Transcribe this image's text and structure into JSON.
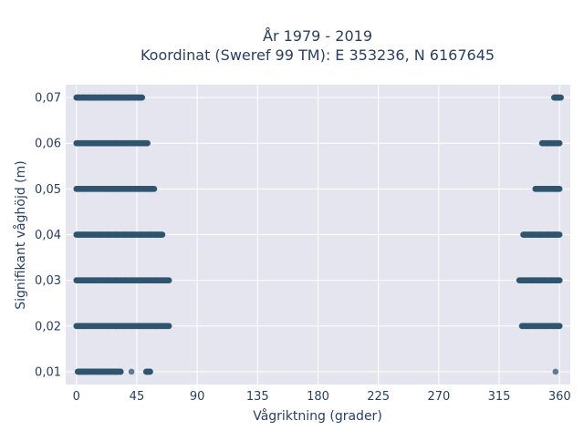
{
  "chart_data": {
    "type": "scatter",
    "title": "År 1979 - 2019",
    "subtitle": "Koordinat (Sweref 99 TM): E 353236, N 6167645",
    "xlabel": "Vågriktning (grader)",
    "ylabel": "Signifikant våghöjd (m)",
    "x_ticks": [
      "0",
      "45",
      "90",
      "135",
      "180",
      "225",
      "270",
      "315",
      "360"
    ],
    "y_ticks": [
      "0,01",
      "0,02",
      "0,03",
      "0,04",
      "0,05",
      "0,06",
      "0,07"
    ],
    "xlim": [
      -8,
      368
    ],
    "ylim": [
      0.0072,
      0.0728
    ],
    "grid": true,
    "colors": {
      "background": "#e5e5ef",
      "grid": "#ffffff",
      "marker": "#2f566e",
      "text": "#2a3f5f"
    },
    "series": [
      {
        "points": [
          [
            0,
            0.07
          ],
          [
            5,
            0.07
          ],
          [
            10,
            0.07
          ],
          [
            14,
            0.07
          ],
          [
            18,
            0.07
          ],
          [
            22,
            0.07
          ],
          [
            26,
            0.07
          ],
          [
            30,
            0.07
          ],
          [
            35,
            0.07
          ],
          [
            40,
            0.07
          ],
          [
            44,
            0.07
          ],
          [
            49,
            0.07
          ],
          [
            356,
            0.07
          ],
          [
            361,
            0.07
          ],
          [
            0,
            0.06
          ],
          [
            5,
            0.06
          ],
          [
            10,
            0.06
          ],
          [
            15,
            0.06
          ],
          [
            20,
            0.06
          ],
          [
            25,
            0.06
          ],
          [
            30,
            0.06
          ],
          [
            35,
            0.06
          ],
          [
            40,
            0.06
          ],
          [
            45,
            0.06
          ],
          [
            50,
            0.06
          ],
          [
            53,
            0.06
          ],
          [
            347,
            0.06
          ],
          [
            352,
            0.06
          ],
          [
            357,
            0.06
          ],
          [
            360,
            0.06
          ],
          [
            0,
            0.05
          ],
          [
            5,
            0.05
          ],
          [
            10,
            0.05
          ],
          [
            15,
            0.05
          ],
          [
            20,
            0.05
          ],
          [
            25,
            0.05
          ],
          [
            30,
            0.05
          ],
          [
            35,
            0.05
          ],
          [
            40,
            0.05
          ],
          [
            45,
            0.05
          ],
          [
            50,
            0.05
          ],
          [
            55,
            0.05
          ],
          [
            58,
            0.05
          ],
          [
            342,
            0.05
          ],
          [
            347,
            0.05
          ],
          [
            352,
            0.05
          ],
          [
            357,
            0.05
          ],
          [
            360,
            0.05
          ],
          [
            0,
            0.04
          ],
          [
            6,
            0.04
          ],
          [
            12,
            0.04
          ],
          [
            18,
            0.04
          ],
          [
            24,
            0.04
          ],
          [
            30,
            0.04
          ],
          [
            36,
            0.04
          ],
          [
            42,
            0.04
          ],
          [
            48,
            0.04
          ],
          [
            54,
            0.04
          ],
          [
            60,
            0.04
          ],
          [
            64,
            0.04
          ],
          [
            333,
            0.04
          ],
          [
            339,
            0.04
          ],
          [
            345,
            0.04
          ],
          [
            351,
            0.04
          ],
          [
            357,
            0.04
          ],
          [
            360,
            0.04
          ],
          [
            0,
            0.03
          ],
          [
            6,
            0.03
          ],
          [
            12,
            0.03
          ],
          [
            18,
            0.03
          ],
          [
            24,
            0.03
          ],
          [
            30,
            0.03
          ],
          [
            36,
            0.03
          ],
          [
            42,
            0.03
          ],
          [
            48,
            0.03
          ],
          [
            54,
            0.03
          ],
          [
            60,
            0.03
          ],
          [
            66,
            0.03
          ],
          [
            69,
            0.03
          ],
          [
            330,
            0.03
          ],
          [
            336,
            0.03
          ],
          [
            342,
            0.03
          ],
          [
            348,
            0.03
          ],
          [
            354,
            0.03
          ],
          [
            360,
            0.03
          ],
          [
            0,
            0.02
          ],
          [
            6,
            0.02
          ],
          [
            12,
            0.02
          ],
          [
            18,
            0.02
          ],
          [
            24,
            0.02
          ],
          [
            30,
            0.02
          ],
          [
            36,
            0.02
          ],
          [
            42,
            0.02
          ],
          [
            48,
            0.02
          ],
          [
            54,
            0.02
          ],
          [
            60,
            0.02
          ],
          [
            66,
            0.02
          ],
          [
            69,
            0.02
          ],
          [
            332,
            0.02
          ],
          [
            338,
            0.02
          ],
          [
            344,
            0.02
          ],
          [
            350,
            0.02
          ],
          [
            356,
            0.02
          ],
          [
            360,
            0.02
          ],
          [
            1,
            0.01
          ],
          [
            4,
            0.01
          ],
          [
            7,
            0.01
          ],
          [
            11,
            0.01
          ],
          [
            16,
            0.01
          ],
          [
            18,
            0.01
          ],
          [
            25,
            0.01
          ],
          [
            29,
            0.01
          ],
          [
            33,
            0.01
          ],
          [
            41,
            0.01
          ],
          [
            52,
            0.01
          ],
          [
            55,
            0.01
          ],
          [
            357,
            0.01
          ]
        ]
      }
    ]
  }
}
